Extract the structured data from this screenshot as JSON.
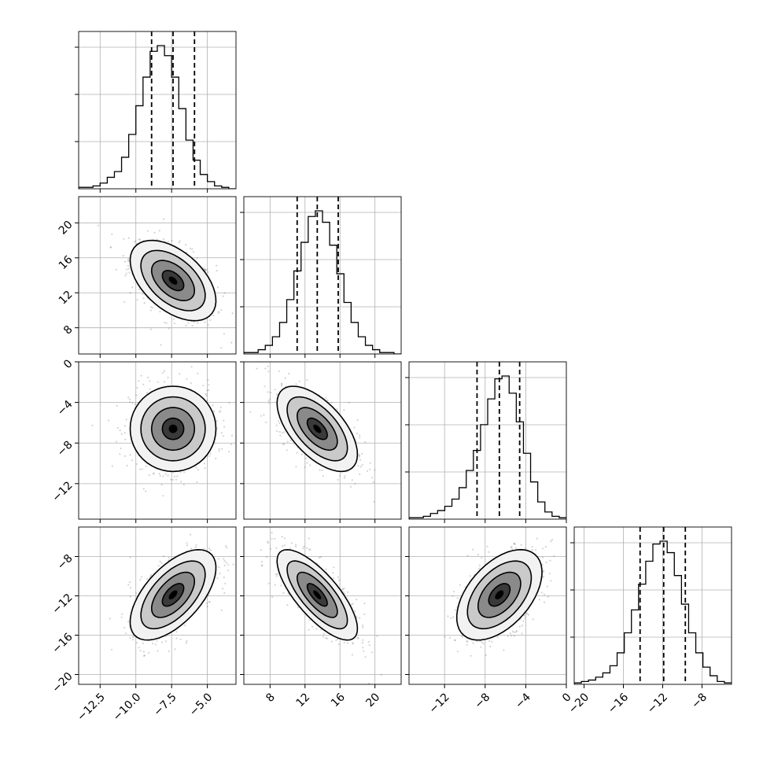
{
  "chart_data": {
    "type": "corner",
    "n_params": 4,
    "grid": true,
    "colors": {
      "line": "#000000",
      "grid": "#b0b0b0",
      "points": "#555555"
    },
    "params": [
      {
        "range": [
          -14,
          -3
        ],
        "ticks": [
          -12.5,
          -10.0,
          -7.5,
          -5.0
        ],
        "tick_labels": [
          "−12.5",
          "−10.0",
          "−7.5",
          "−5.0"
        ],
        "quantiles": [
          -8.9,
          -7.4,
          -5.9
        ],
        "mean": -7.4,
        "sd": 1.5
      },
      {
        "range": [
          5,
          23
        ],
        "ticks": [
          8,
          12,
          16,
          20
        ],
        "tick_labels": [
          "8",
          "12",
          "16",
          "20"
        ],
        "quantiles": [
          11.1,
          13.4,
          15.8
        ],
        "mean": 13.4,
        "sd": 2.3
      },
      {
        "range": [
          -15.5,
          0
        ],
        "ticks": [
          -12,
          -8,
          -4,
          0
        ],
        "tick_labels": [
          "−12",
          "−8",
          "−4",
          "0"
        ],
        "quantiles": [
          -8.8,
          -6.6,
          -4.6
        ],
        "mean": -6.6,
        "sd": 2.1
      },
      {
        "range": [
          -21,
          -5
        ],
        "ticks": [
          -20,
          -16,
          -12,
          -8
        ],
        "tick_labels": [
          "−20",
          "−16",
          "−12",
          "−8"
        ],
        "quantiles": [
          -14.3,
          -11.9,
          -9.7
        ],
        "mean": -11.9,
        "sd": 2.3
      }
    ],
    "histograms": [
      {
        "counts": [
          1,
          1,
          2,
          4,
          8,
          12,
          22,
          38,
          58,
          78,
          96,
          100,
          93,
          78,
          56,
          34,
          20,
          10,
          5,
          2,
          1,
          0
        ]
      },
      {
        "counts": [
          1,
          1,
          3,
          6,
          12,
          22,
          38,
          58,
          78,
          96,
          100,
          92,
          76,
          56,
          36,
          22,
          12,
          6,
          3,
          1,
          1,
          0
        ]
      },
      {
        "counts": [
          1,
          1,
          2,
          4,
          6,
          9,
          14,
          22,
          34,
          48,
          66,
          84,
          98,
          100,
          88,
          68,
          46,
          26,
          12,
          5,
          2,
          1
        ]
      },
      {
        "counts": [
          1,
          2,
          3,
          5,
          8,
          13,
          22,
          36,
          52,
          70,
          86,
          98,
          100,
          92,
          76,
          56,
          36,
          22,
          12,
          6,
          2,
          1
        ]
      }
    ],
    "correlations": [
      {
        "pair": [
          0,
          1
        ],
        "rho": -0.5
      },
      {
        "pair": [
          0,
          2
        ],
        "rho": 0.0
      },
      {
        "pair": [
          1,
          2
        ],
        "rho": -0.6
      },
      {
        "pair": [
          0,
          3
        ],
        "rho": 0.6
      },
      {
        "pair": [
          1,
          3
        ],
        "rho": -0.75
      },
      {
        "pair": [
          2,
          3
        ],
        "rho": 0.5
      }
    ],
    "contour_levels_sigma": [
      0.5,
      1.0,
      1.5,
      2.0
    ]
  }
}
